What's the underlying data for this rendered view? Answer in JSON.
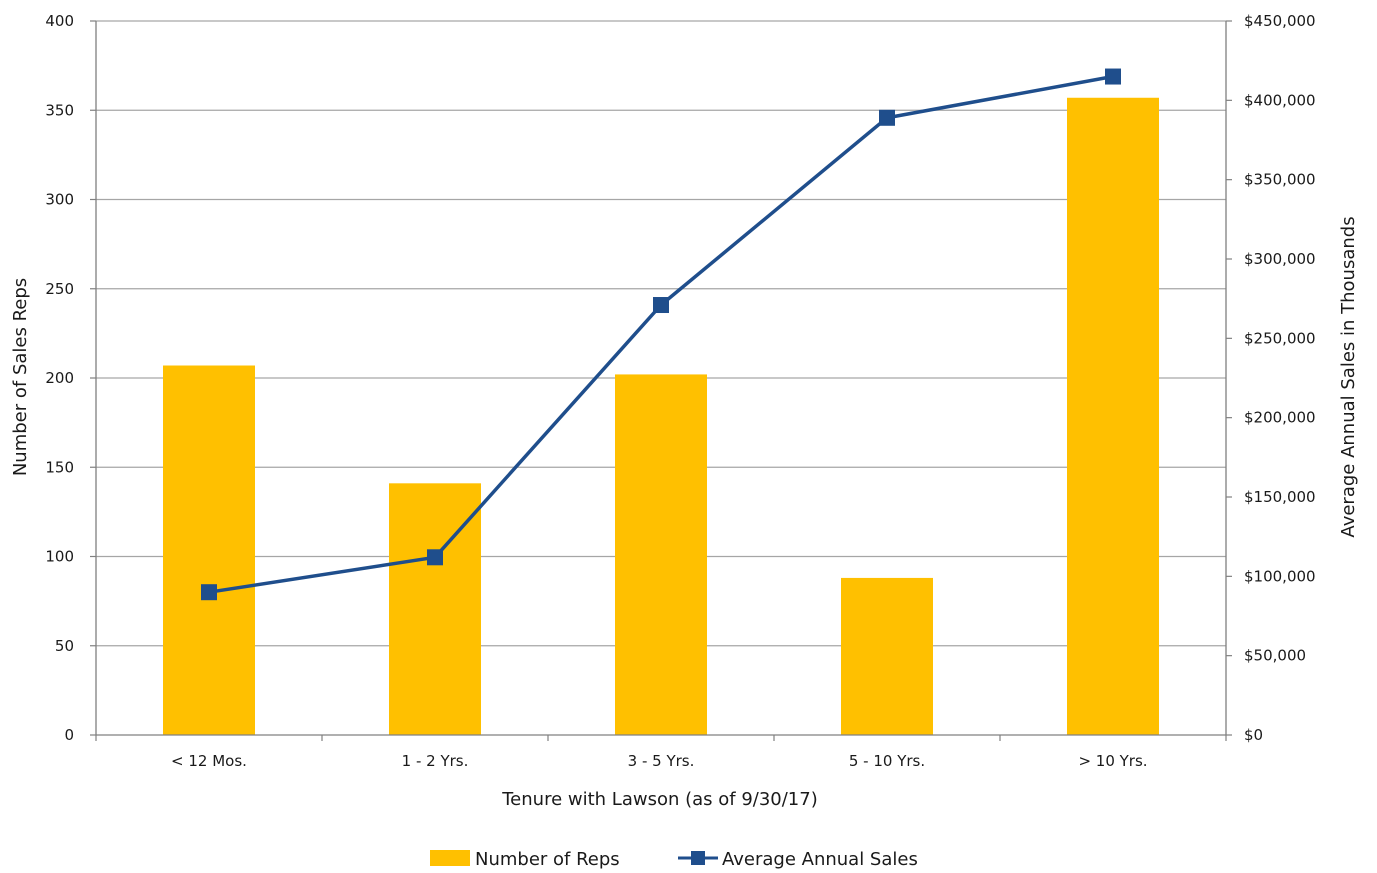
{
  "chart_data": {
    "type": "bar",
    "categories": [
      "< 12 Mos.",
      "1 - 2 Yrs.",
      "3 - 5 Yrs.",
      "5 - 10 Yrs.",
      "> 10 Yrs."
    ],
    "series": [
      {
        "name": "Number of Reps",
        "type": "bar",
        "axis": "left",
        "color": "#FFC000",
        "values": [
          207,
          141,
          202,
          88,
          357
        ]
      },
      {
        "name": "Average Annual Sales",
        "type": "line",
        "axis": "right",
        "color": "#1F4E8C",
        "marker": "square",
        "values": [
          90000,
          112000,
          271000,
          389000,
          415000
        ]
      }
    ],
    "xlabel": "Tenure with Lawson (as of 9/30/17)",
    "ylabel": "Number of Sales Reps",
    "y2label": "Average Annual Sales in Thousands",
    "ylim": [
      0,
      400
    ],
    "y2lim": [
      0,
      450000
    ],
    "yticks": [
      "0",
      "50",
      "100",
      "150",
      "200",
      "250",
      "300",
      "350",
      "400"
    ],
    "y2ticks": [
      "$0",
      "$50,000",
      "$100,000",
      "$150,000",
      "$200,000",
      "$250,000",
      "$300,000",
      "$350,000",
      "$400,000",
      "$450,000"
    ],
    "grid": true,
    "legend_position": "bottom"
  }
}
